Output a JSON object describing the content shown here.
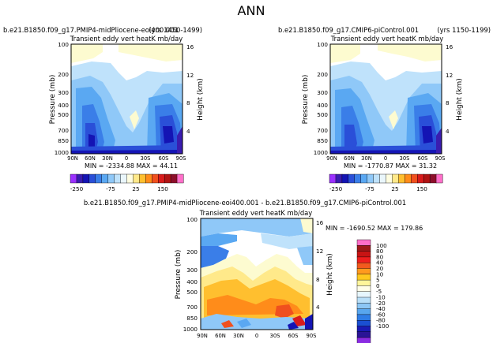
{
  "page_title": "ANN",
  "panels": [
    {
      "case": "b.e21.B1850.f09_g17.PMIP4-midPliocene-eoi400.001",
      "years": "(yrs 1450-1499)",
      "subtitle": "Transient eddy vert heatK mb/day",
      "min_max": "MIN = -2334.88   MAX = 44.11"
    },
    {
      "case": "b.e21.B1850.f09_g17.CMIP6-piControl.001",
      "years": "(yrs 1150-1199)",
      "subtitle": "Transient eddy vert heatK mb/day",
      "min_max": "MIN = -1770.87   MAX = 31.32"
    },
    {
      "case": "b.e21.B1850.f09_g17.PMIP4-midPliocene-eoi400.001 - b.e21.B1850.f09_g17.CMIP6-piControl.001",
      "years": "",
      "subtitle": "Transient eddy vert heatK mb/day",
      "min_max": "MIN = -1690.52   MAX = 179.86"
    }
  ],
  "chart_data": [
    {
      "type": "heatmap",
      "title": "Transient eddy vert heatK mb/day",
      "xlabel": "",
      "ylabel": "Pressure (mb)",
      "ylabel_right": "Height (km)",
      "x_ticks": [
        "90N",
        "60N",
        "30N",
        "0",
        "30S",
        "60S",
        "90S"
      ],
      "y_ticks": [
        100,
        200,
        300,
        400,
        500,
        700,
        850,
        1000
      ],
      "y_ticks_right": [
        16,
        12,
        8,
        4
      ],
      "min": -2334.88,
      "max": 44.11
    },
    {
      "type": "heatmap",
      "title": "Transient eddy vert heatK mb/day",
      "xlabel": "",
      "ylabel": "Pressure (mb)",
      "ylabel_right": "Height (km)",
      "x_ticks": [
        "90N",
        "60N",
        "30N",
        "0",
        "30S",
        "60S",
        "90S"
      ],
      "y_ticks": [
        100,
        200,
        300,
        400,
        500,
        700,
        850,
        1000
      ],
      "y_ticks_right": [
        16,
        12,
        8,
        4
      ],
      "min": -1770.87,
      "max": 31.32
    },
    {
      "type": "heatmap",
      "title": "Transient eddy vert heatK mb/day",
      "xlabel": "",
      "ylabel": "Pressure (mb)",
      "ylabel_right": "Height (km)",
      "x_ticks": [
        "90N",
        "60N",
        "30N",
        "0",
        "30S",
        "60S",
        "90S"
      ],
      "y_ticks": [
        100,
        200,
        300,
        400,
        500,
        700,
        850,
        1000
      ],
      "y_ticks_right": [
        16,
        12,
        8,
        4
      ],
      "min": -1690.52,
      "max": 179.86
    }
  ],
  "colorbar_abs": {
    "labels": [
      "-250",
      "-75",
      "25",
      "150"
    ],
    "colors": [
      "#9b30ff",
      "#3a1cb0",
      "#1414b4",
      "#2a4fd8",
      "#3a7ee8",
      "#5aa8f2",
      "#8fc8f8",
      "#bfe2fb",
      "#eaf6fb",
      "#fffde0",
      "#ffe98a",
      "#ffbf2f",
      "#ff8c1a",
      "#f0501e",
      "#d81c1c",
      "#b01414",
      "#8c0f2a",
      "#ff6ec8"
    ]
  },
  "colorbar_diff": {
    "labels": [
      "100",
      "80",
      "80",
      "40",
      "20",
      "10",
      "5",
      "0",
      "-5",
      "-10",
      "-20",
      "-40",
      "-60",
      "-80",
      "-100"
    ],
    "colors": [
      "#ff6ec8",
      "#9e1818",
      "#c81414",
      "#ee1e1e",
      "#f25a1e",
      "#ff9a1e",
      "#ffc81e",
      "#fff59a",
      "#fffde8",
      "#e6f6fd",
      "#b8dff8",
      "#8cc6f4",
      "#58a6ee",
      "#2f7de6",
      "#1a4fd2",
      "#1a1ab4",
      "#2a1496",
      "#8a2be2"
    ]
  },
  "plot_colors": {
    "bg_neg_light": "#bfe2fb",
    "white": "#ffffff",
    "pale_yellow": "#fdfbd0"
  }
}
